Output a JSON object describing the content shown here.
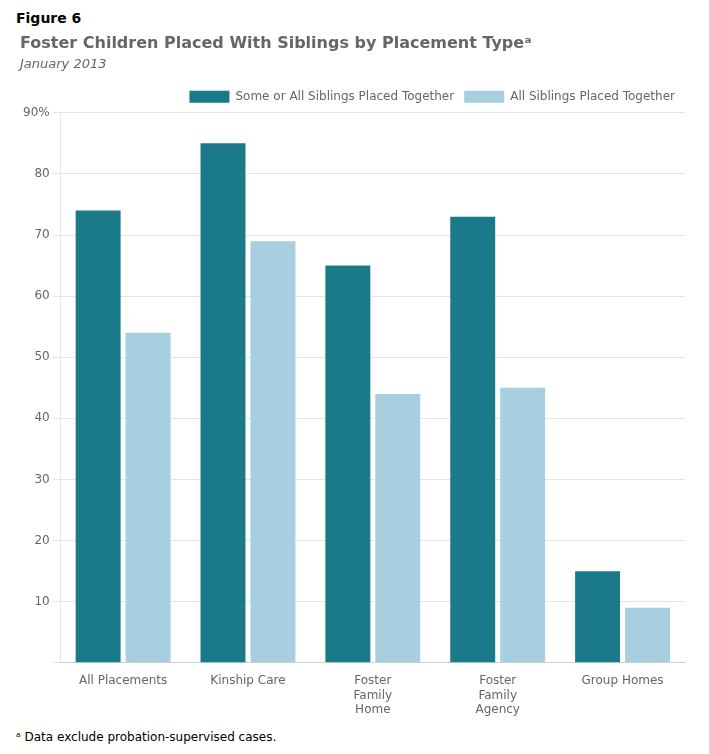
{
  "chart_data": {
    "type": "bar",
    "title": "Foster Children Placed With Siblings by Placement Typeᵃ",
    "subtitle": "January 2013",
    "annotations": [
      "Figure 6",
      "ᵃ Data exclude probation-supervised cases."
    ],
    "categories": [
      "All Placements",
      "Kinship Care",
      "Foster\nFamily\nHome",
      "Foster\nFamily\nAgency",
      "Group Homes"
    ],
    "series": [
      {
        "name": "Some or All Siblings Placed Together",
        "color": "#1a7a8a",
        "values": [
          74,
          85,
          65,
          73,
          15
        ]
      },
      {
        "name": "All Siblings Placed Together",
        "color": "#a8cfe0",
        "values": [
          54,
          69,
          44,
          45,
          9
        ]
      }
    ],
    "ylim": [
      0,
      90
    ],
    "yticks": [
      {
        "value": 0,
        "label": ""
      },
      10,
      20,
      30,
      40,
      50,
      60,
      70,
      80,
      {
        "value": 90,
        "label": "90%"
      }
    ],
    "grid": true,
    "legend": "upper right"
  }
}
